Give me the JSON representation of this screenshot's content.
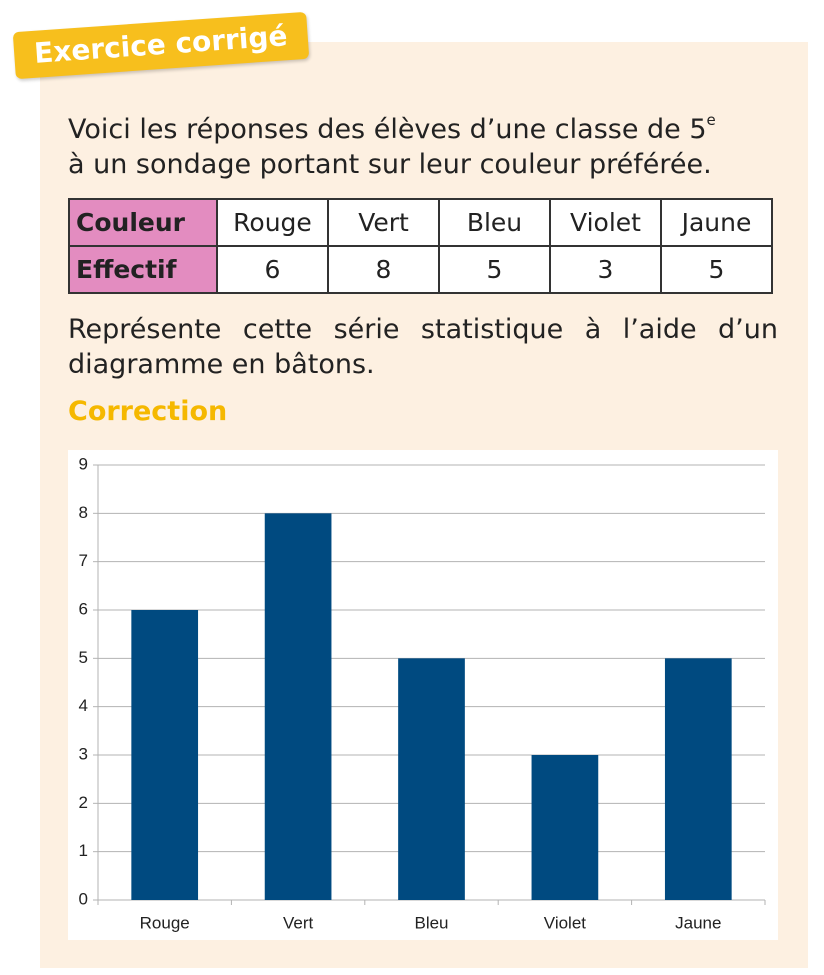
{
  "badge": "Exercice corrigé",
  "intro": {
    "line1": "Voici les réponses des élèves d’une classe de 5",
    "sup": "e",
    "line2": "à un sondage portant sur leur couleur préférée."
  },
  "table": {
    "rows": [
      [
        "Couleur",
        "Rouge",
        "Vert",
        "Bleu",
        "Violet",
        "Jaune"
      ],
      [
        "Effectif",
        6,
        8,
        5,
        3,
        5
      ]
    ]
  },
  "question": "Représente cette série statistique à l’aide d’un diagramme en bâtons.",
  "correction_title": "Correction",
  "chart_data": {
    "type": "bar",
    "categories": [
      "Rouge",
      "Vert",
      "Bleu",
      "Violet",
      "Jaune"
    ],
    "values": [
      6,
      8,
      5,
      3,
      5
    ],
    "color": "#004a80",
    "ylim": [
      0,
      9
    ],
    "yticks": [
      0,
      1,
      2,
      3,
      4,
      5,
      6,
      7,
      8,
      9
    ],
    "grid": true
  }
}
